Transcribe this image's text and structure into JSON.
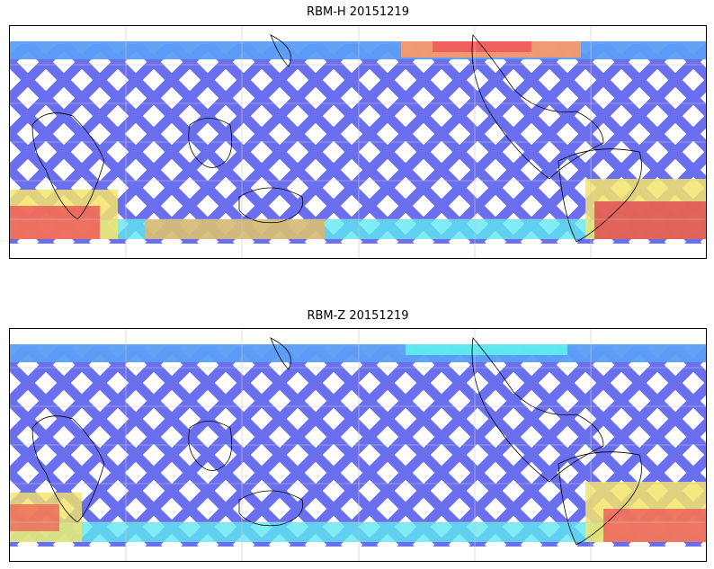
{
  "maps": [
    {
      "title": "RBM-H 20151219",
      "warm_zones": [
        {
          "name": "north-pacific-band",
          "color": "#ff9a66"
        },
        {
          "name": "south-indian-ocean",
          "color": "#ef5b5b"
        },
        {
          "name": "south-atlantic",
          "color": "#e05555"
        }
      ]
    },
    {
      "title": "RBM-Z 20151219",
      "warm_zones": [
        {
          "name": "south-indian-ocean",
          "color": "#ef6b5b"
        },
        {
          "name": "south-atlantic",
          "color": "#ff9a66"
        }
      ]
    }
  ],
  "colors": {
    "low": "#6a6ff0",
    "mid_low": "#5c9df5",
    "mid": "#5ff0f0",
    "mid_high": "#c8f77a",
    "high": "#f5e46a",
    "max": "#ef5b5b",
    "coastline": "#000000",
    "grid": "#c8c8c8"
  }
}
